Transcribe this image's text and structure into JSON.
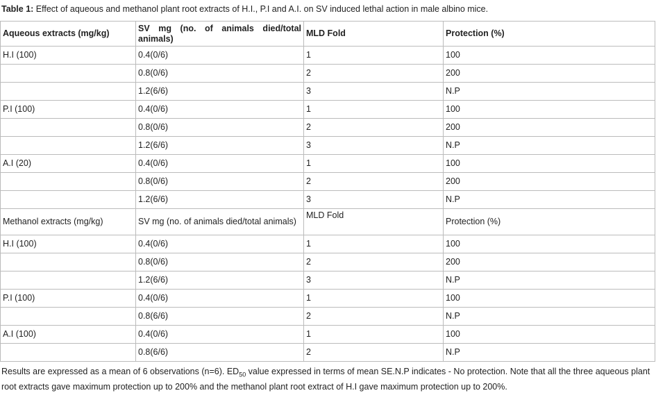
{
  "caption": {
    "label": "Table 1:",
    "text": " Effect of aqueous and methanol plant root extracts of H.I., P.I and A.I. on SV induced lethal action in male albino mice."
  },
  "table": {
    "sections": [
      {
        "header": [
          "Aqueous extracts (mg/kg)",
          "SV mg (no. of animals died/total animals)",
          "MLD Fold",
          "Protection (%)"
        ],
        "groups": [
          {
            "extract": "H.I (100)",
            "rows": [
              [
                "0.4(0/6)",
                "1",
                "100"
              ],
              [
                "0.8(0/6)",
                "2",
                "200"
              ],
              [
                "1.2(6/6)",
                "3",
                "N.P"
              ]
            ]
          },
          {
            "extract": "P.I (100)",
            "rows": [
              [
                "0.4(0/6)",
                "1",
                "100"
              ],
              [
                "0.8(0/6)",
                "2",
                "200"
              ],
              [
                "1.2(6/6)",
                "3",
                "N.P"
              ]
            ]
          },
          {
            "extract": "A.I (20)",
            "rows": [
              [
                "0.4(0/6)",
                "1",
                "100"
              ],
              [
                "0.8(0/6)",
                "2",
                "200"
              ],
              [
                "1.2(6/6)",
                "3",
                "N.P"
              ]
            ]
          }
        ]
      },
      {
        "header": [
          "Methanol extracts (mg/kg)",
          "SV mg (no. of animals died/total animals)",
          "MLD Fold",
          "Protection (%)"
        ],
        "groups": [
          {
            "extract": "H.I (100)",
            "rows": [
              [
                "0.4(0/6)",
                "1",
                "100"
              ],
              [
                "0.8(0/6)",
                "2",
                "200"
              ],
              [
                "1.2(6/6)",
                "3",
                "N.P"
              ]
            ]
          },
          {
            "extract": "P.I (100)",
            "rows": [
              [
                "0.4(0/6)",
                "1",
                "100"
              ],
              [
                "0.8(6/6)",
                "2",
                "N.P"
              ]
            ]
          },
          {
            "extract": "A.I (100)",
            "rows": [
              [
                "0.4(0/6)",
                "1",
                "100"
              ],
              [
                "0.8(6/6)",
                "2",
                "N.P"
              ]
            ]
          }
        ]
      }
    ]
  },
  "footnote": {
    "before": "Results are expressed as a mean of 6 observations (n=6). ED",
    "sub": "50",
    "after": " value expressed in terms of mean SE.N.P indicates - No protection. Note that all the three aqueous plant root extracts gave maximum protection up to 200% and the methanol plant root extract of H.I gave maximum protection up to 200%."
  }
}
